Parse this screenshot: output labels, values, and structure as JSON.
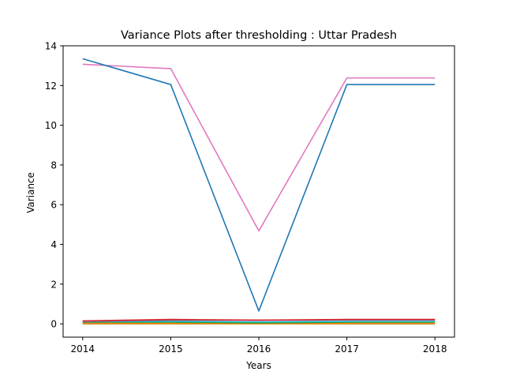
{
  "chart_data": {
    "type": "line",
    "title": "Variance Plots after thresholding : Uttar Pradesh",
    "xlabel": "Years",
    "ylabel": "Variance",
    "x": [
      "2014",
      "2015",
      "2016",
      "2017",
      "2018"
    ],
    "ylim": [
      -0.67,
      14
    ],
    "yticks": [
      "0",
      "2",
      "4",
      "6",
      "8",
      "10",
      "12",
      "14"
    ],
    "grid": false,
    "series": [
      {
        "color": "#1f77b4",
        "values": [
          13.35,
          12.05,
          0.65,
          12.05,
          12.05
        ]
      },
      {
        "color": "#e377c2",
        "values": [
          13.07,
          12.85,
          4.68,
          12.38,
          12.38
        ]
      },
      {
        "color": "#d62728",
        "values": [
          0.15,
          0.22,
          0.19,
          0.22,
          0.22
        ]
      },
      {
        "color": "#9467bd",
        "values": [
          0.12,
          0.2,
          0.17,
          0.2,
          0.2
        ]
      },
      {
        "color": "#8c564b",
        "values": [
          0.14,
          0.18,
          0.18,
          0.19,
          0.19
        ]
      },
      {
        "color": "#17becf",
        "values": [
          0.13,
          0.12,
          0.09,
          0.12,
          0.12
        ]
      },
      {
        "color": "#2ca02c",
        "values": [
          0.08,
          0.08,
          0.05,
          0.08,
          0.08
        ]
      },
      {
        "color": "#ff7f0e",
        "values": [
          0.02,
          0.02,
          0.01,
          0.02,
          0.02
        ]
      },
      {
        "color": "#bcbd22",
        "values": [
          0.01,
          0.01,
          0.0,
          0.01,
          0.01
        ]
      },
      {
        "color": "#7f7f7f",
        "values": [
          0.0,
          0.0,
          0.0,
          0.0,
          0.0
        ]
      }
    ]
  }
}
